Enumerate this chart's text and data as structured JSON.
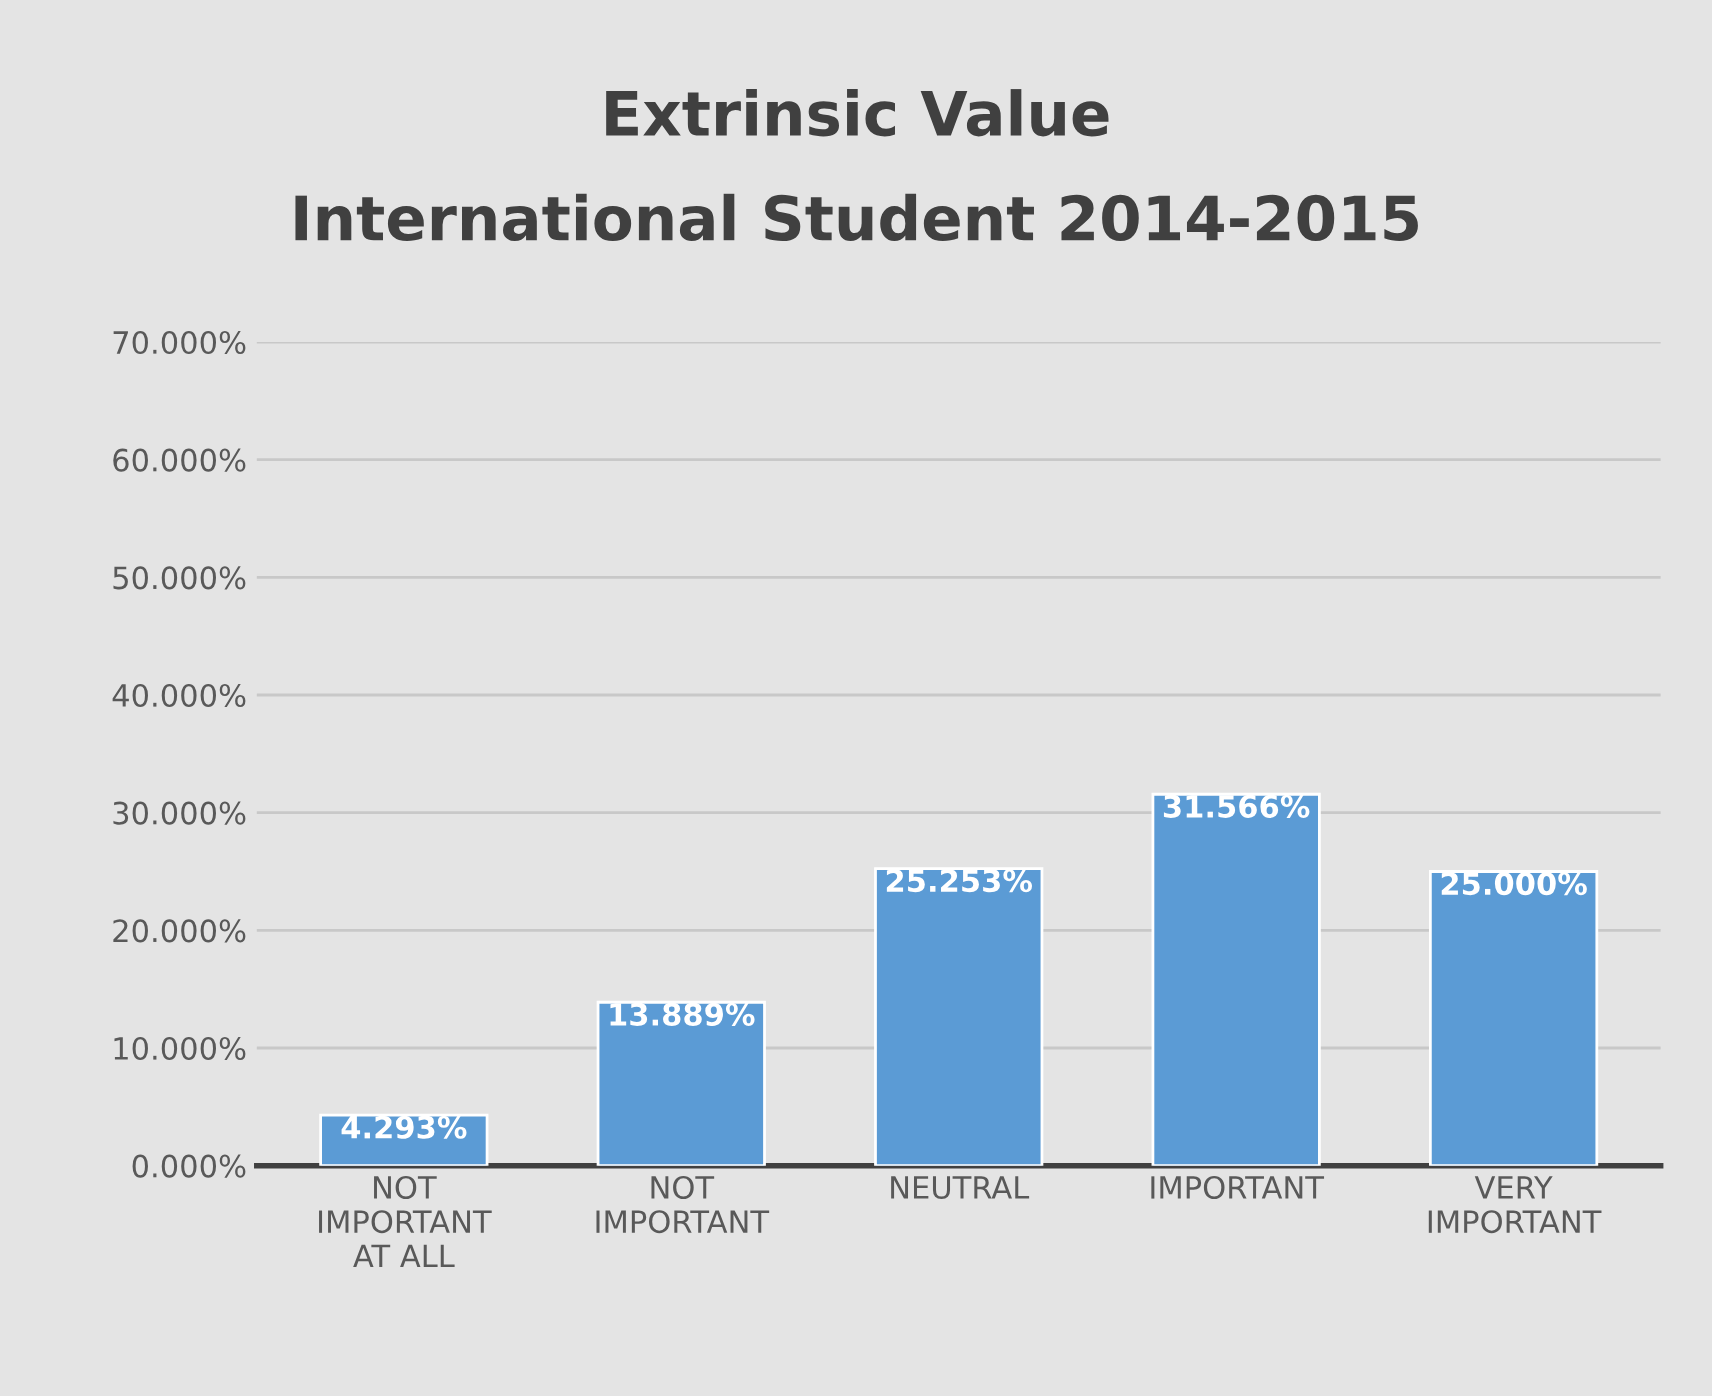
{
  "chart_data": {
    "type": "bar",
    "title": "Extrinsic Value",
    "subtitle": "International Student 2014-2015",
    "categories": [
      "NOT IMPORTANT AT ALL",
      "NOT IMPORTANT",
      "NEUTRAL",
      "IMPORTANT",
      "VERY IMPORTANT"
    ],
    "values": [
      4.293,
      13.889,
      25.253,
      31.566,
      25.0
    ],
    "value_labels": [
      "4.293%",
      "13.889%",
      "25.253%",
      "31.566%",
      "25.000%"
    ],
    "color": "#5b9bd5",
    "ylim": [
      0,
      70
    ],
    "yticks": [
      {
        "value": 0,
        "label": "0.000%"
      },
      {
        "value": 10,
        "label": "10.000%"
      },
      {
        "value": 20,
        "label": "20.000%"
      },
      {
        "value": 30,
        "label": "30.000%"
      },
      {
        "value": 40,
        "label": "40.000%"
      },
      {
        "value": 50,
        "label": "50.000%"
      },
      {
        "value": 60,
        "label": "60.000%"
      },
      {
        "value": 70,
        "label": "70.000%"
      }
    ],
    "grid": "y"
  }
}
